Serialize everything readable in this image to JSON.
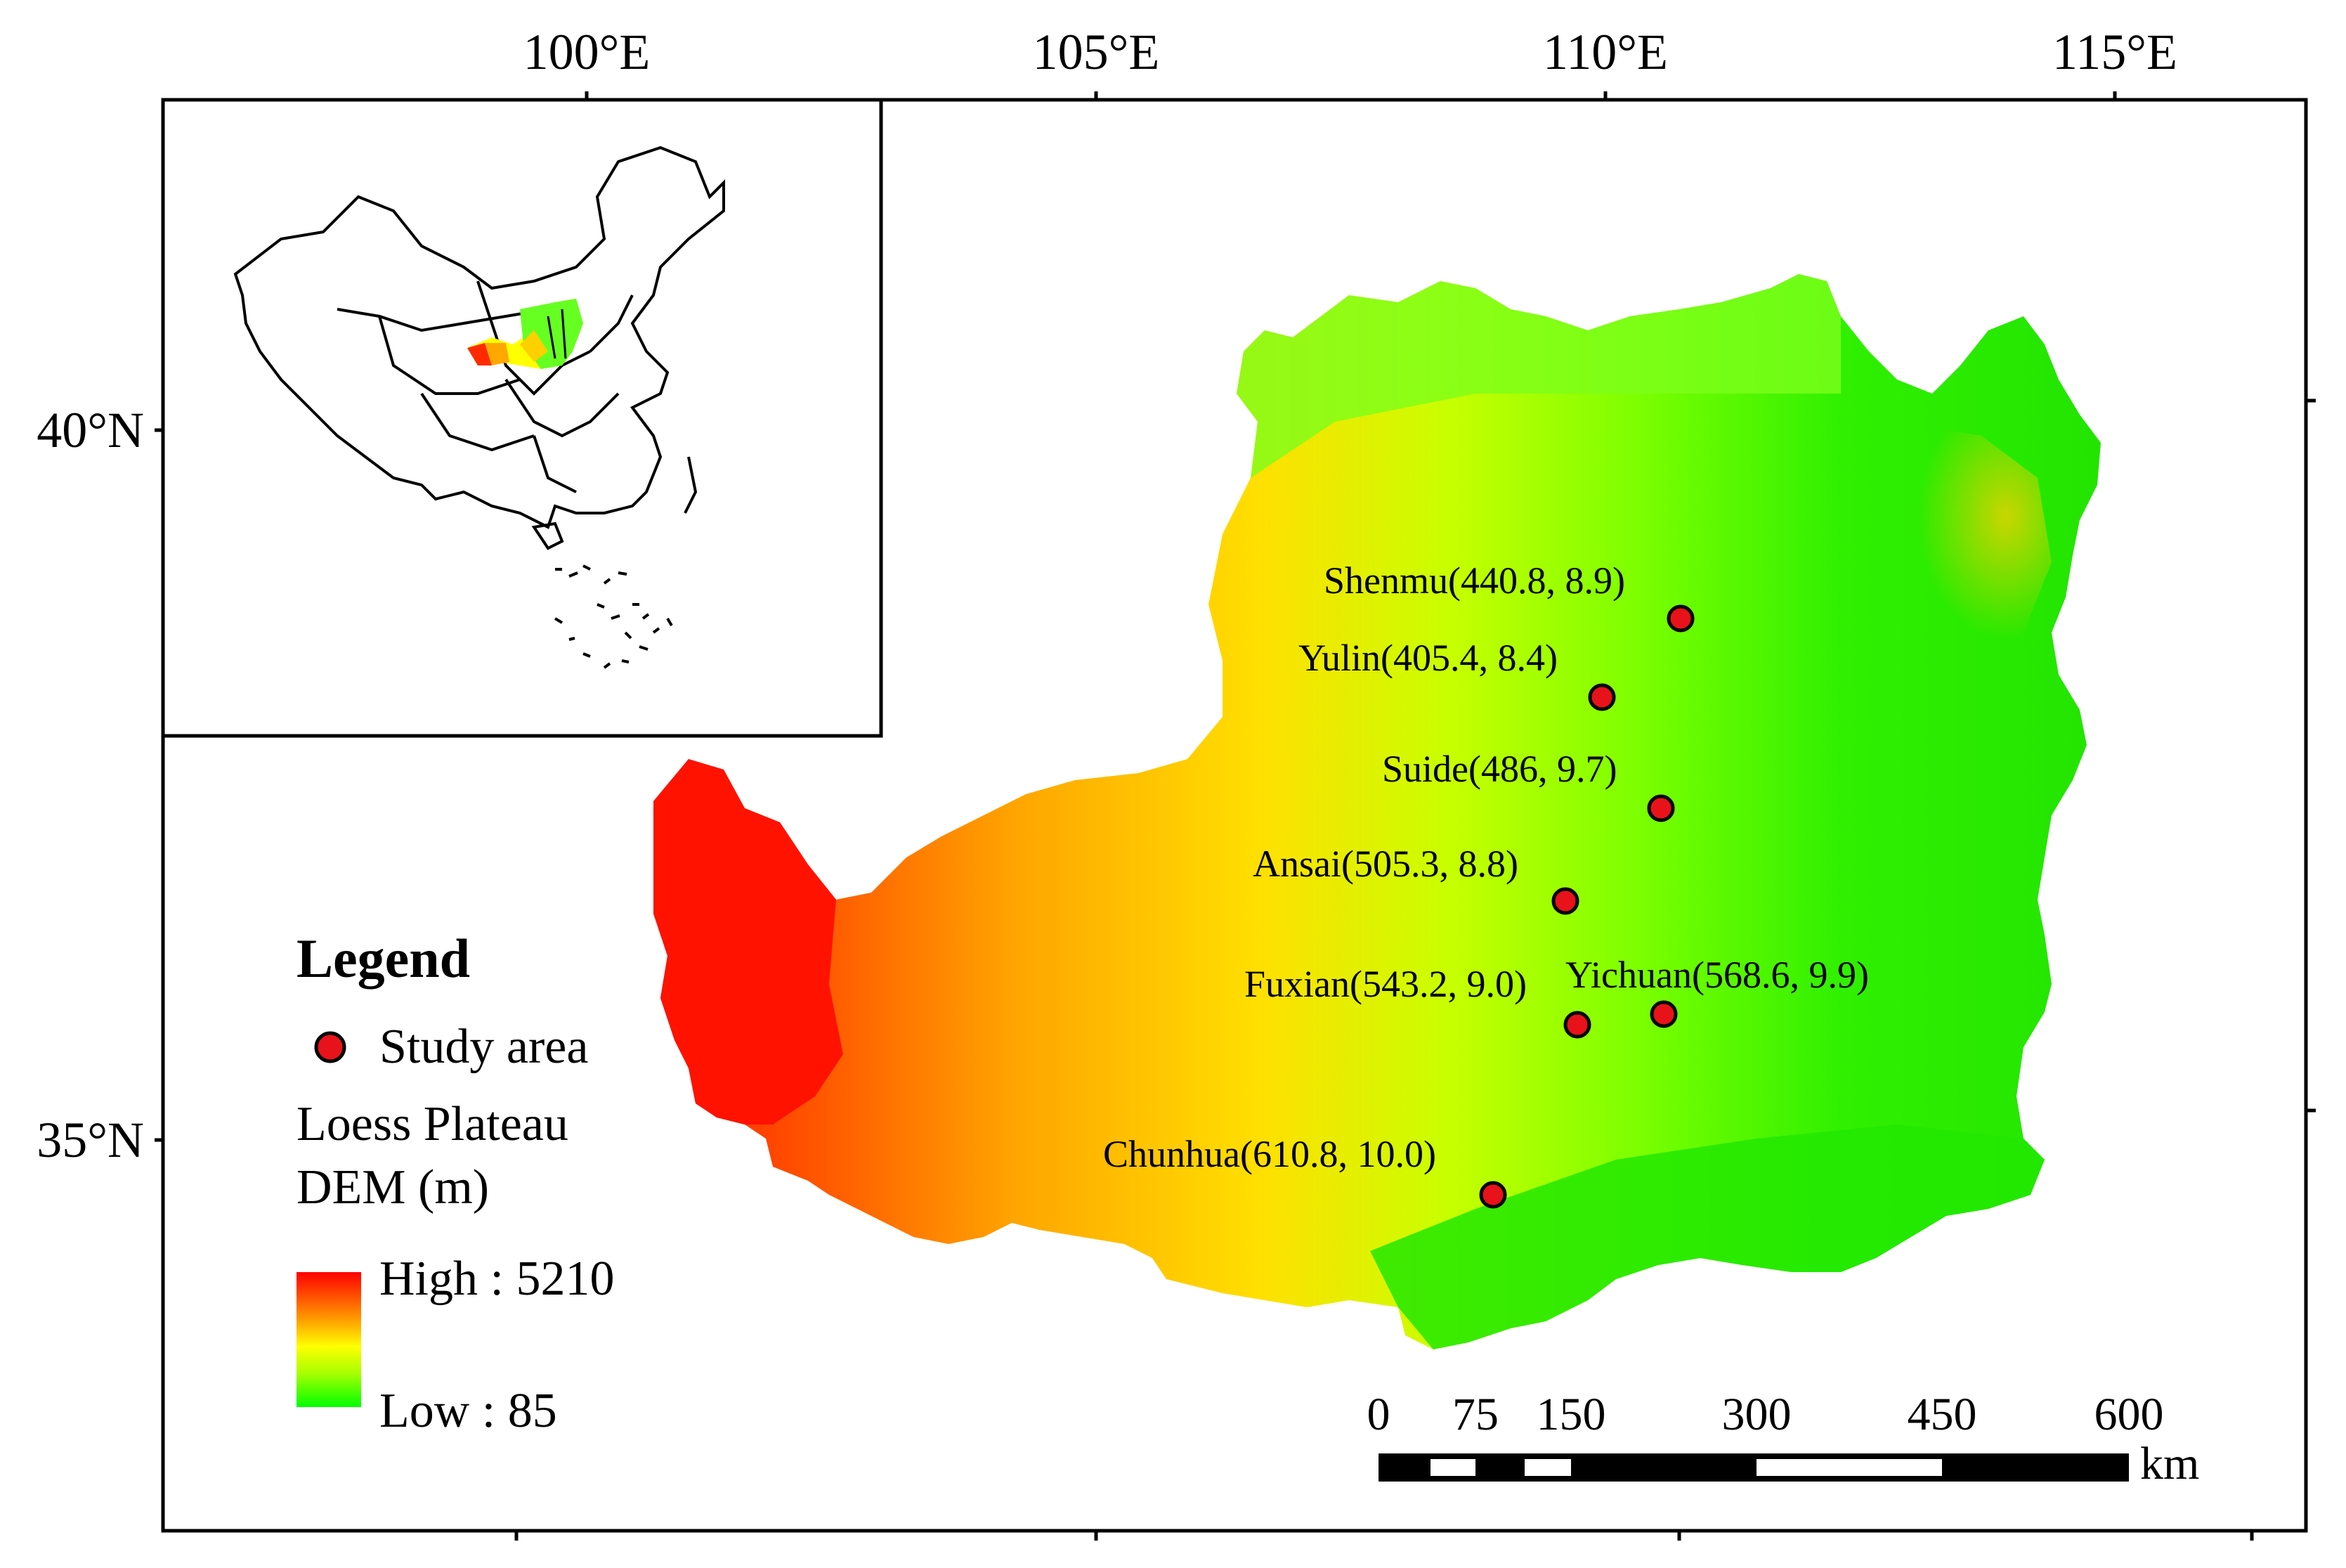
{
  "map": {
    "axes": {
      "top_longitude_ticks": [
        "100°E",
        "105°E",
        "110°E",
        "115°E"
      ],
      "left_latitude_ticks": [
        "40°N",
        "35°N"
      ]
    },
    "study_sites": [
      {
        "label": "Shenmu(440.8, 8.9)"
      },
      {
        "label": "Yulin(405.4, 8.4)"
      },
      {
        "label": "Suide(486, 9.7)"
      },
      {
        "label": "Ansai(505.3, 8.8)"
      },
      {
        "label": "Fuxian(543.2, 9.0)"
      },
      {
        "label": "Yichuan(568.6, 9.9)"
      },
      {
        "label": "Chunhua(610.8, 10.0)"
      }
    ],
    "legend": {
      "title": "Legend",
      "point_label": "Study area",
      "dem_title_line1": "Loess Plateau",
      "dem_title_line2": "DEM (m)",
      "high_label": "High : 5210",
      "low_label": "Low : 85",
      "colors": {
        "high": "#ff0000",
        "mid": "#ffff00",
        "low": "#00ff00",
        "marker": "#e8121a"
      }
    },
    "scale_bar": {
      "labels": [
        "0",
        "75",
        "150",
        "300",
        "450",
        "600"
      ],
      "unit": "km"
    },
    "inset": {
      "description_icon": "china-outline-map"
    }
  }
}
